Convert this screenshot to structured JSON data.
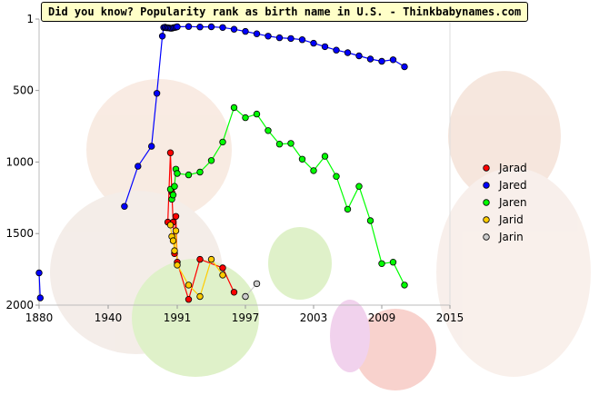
{
  "chart_data": {
    "type": "line",
    "title": "Did you know? Popularity rank as birth name in U.S. - Thinkbabynames.com",
    "xlabel": "",
    "ylabel": "",
    "x_ticks": [
      "1880",
      "1940",
      "1991",
      "1997",
      "2003",
      "2009",
      "2015"
    ],
    "y_ticks": [
      "1",
      "500",
      "1000",
      "1500",
      "2000"
    ],
    "ylim": [
      2000,
      1
    ],
    "y_inverted": true,
    "grid": false,
    "legend_position": "right",
    "series": [
      {
        "name": "Jarad",
        "color": "#ff0000",
        "points": [
          [
            1984,
            1420
          ],
          [
            1986,
            935
          ],
          [
            1987,
            1210
          ],
          [
            1988,
            1420
          ],
          [
            1989,
            1640
          ],
          [
            1990,
            1380
          ],
          [
            1991,
            1700
          ],
          [
            1992,
            1960
          ],
          [
            1993,
            1680
          ],
          [
            1995,
            1740
          ],
          [
            1996,
            1910
          ]
        ]
      },
      {
        "name": "Jared",
        "color": "#0000ff",
        "points": [
          [
            1880,
            1775
          ],
          [
            1881,
            1950
          ],
          [
            1952,
            1310
          ],
          [
            1962,
            1030
          ],
          [
            1972,
            890
          ],
          [
            1976,
            520
          ],
          [
            1980,
            120
          ],
          [
            1981,
            60
          ],
          [
            1982,
            58
          ],
          [
            1983,
            62
          ],
          [
            1984,
            62
          ],
          [
            1985,
            63
          ],
          [
            1986,
            65
          ],
          [
            1987,
            65
          ],
          [
            1988,
            62
          ],
          [
            1989,
            60
          ],
          [
            1990,
            58
          ],
          [
            1991,
            55
          ],
          [
            1992,
            53
          ],
          [
            1993,
            56
          ],
          [
            1994,
            55
          ],
          [
            1995,
            60
          ],
          [
            1996,
            72
          ],
          [
            1997,
            87
          ],
          [
            1998,
            104
          ],
          [
            1999,
            120
          ],
          [
            2000,
            132
          ],
          [
            2001,
            137
          ],
          [
            2002,
            145
          ],
          [
            2003,
            170
          ],
          [
            2004,
            194
          ],
          [
            2005,
            218
          ],
          [
            2006,
            236
          ],
          [
            2007,
            258
          ],
          [
            2008,
            280
          ],
          [
            2009,
            296
          ],
          [
            2010,
            285
          ],
          [
            2011,
            334
          ]
        ]
      },
      {
        "name": "Jaren",
        "color": "#00ff00",
        "points": [
          [
            1986,
            1190
          ],
          [
            1987,
            1260
          ],
          [
            1988,
            1230
          ],
          [
            1989,
            1170
          ],
          [
            1990,
            1050
          ],
          [
            1991,
            1080
          ],
          [
            1992,
            1090
          ],
          [
            1993,
            1070
          ],
          [
            1994,
            990
          ],
          [
            1995,
            860
          ],
          [
            1996,
            620
          ],
          [
            1997,
            690
          ],
          [
            1998,
            665
          ],
          [
            1999,
            780
          ],
          [
            2000,
            875
          ],
          [
            2001,
            870
          ],
          [
            2002,
            980
          ],
          [
            2003,
            1060
          ],
          [
            2004,
            960
          ],
          [
            2005,
            1100
          ],
          [
            2006,
            1330
          ],
          [
            2007,
            1170
          ],
          [
            2008,
            1410
          ],
          [
            2009,
            1710
          ],
          [
            2010,
            1700
          ],
          [
            2011,
            1860
          ]
        ]
      },
      {
        "name": "Jarid",
        "color": "#ffcc00",
        "points": [
          [
            1986,
            1440
          ],
          [
            1987,
            1520
          ],
          [
            1988,
            1550
          ],
          [
            1989,
            1620
          ],
          [
            1990,
            1480
          ],
          [
            1991,
            1720
          ],
          [
            1992,
            1860
          ],
          [
            1993,
            1940
          ],
          [
            1994,
            1680
          ],
          [
            1995,
            1790
          ]
        ]
      },
      {
        "name": "Jarin",
        "color": "#cccccc",
        "points": [
          [
            1997,
            1940
          ],
          [
            1998,
            1850
          ]
        ]
      }
    ]
  }
}
